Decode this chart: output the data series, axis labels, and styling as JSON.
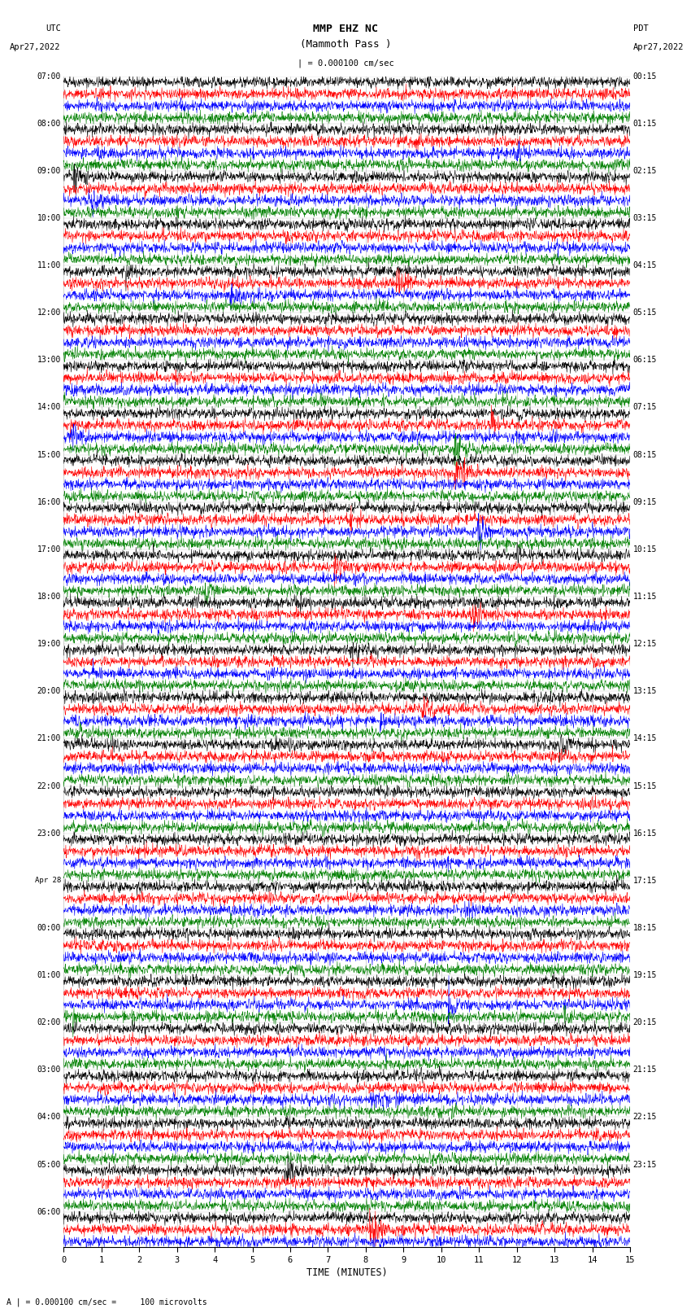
{
  "title_line1": "MMP EHZ NC",
  "title_line2": "(Mammoth Pass )",
  "scale_label": "| = 0.000100 cm/sec",
  "utc_label": "UTC",
  "utc_date": "Apr27,2022",
  "pdt_label": "PDT",
  "pdt_date": "Apr27,2022",
  "xlabel": "TIME (MINUTES)",
  "xmin": 0,
  "xmax": 15,
  "background_color": "#ffffff",
  "trace_colors": [
    "black",
    "red",
    "blue",
    "green"
  ],
  "bottom_note": "A | = 0.000100 cm/sec =     100 microvolts",
  "left_times": [
    "07:00",
    "",
    "",
    "",
    "08:00",
    "",
    "",
    "",
    "09:00",
    "",
    "",
    "",
    "10:00",
    "",
    "",
    "",
    "11:00",
    "",
    "",
    "",
    "12:00",
    "",
    "",
    "",
    "13:00",
    "",
    "",
    "",
    "14:00",
    "",
    "",
    "",
    "15:00",
    "",
    "",
    "",
    "16:00",
    "",
    "",
    "",
    "17:00",
    "",
    "",
    "",
    "18:00",
    "",
    "",
    "",
    "19:00",
    "",
    "",
    "",
    "20:00",
    "",
    "",
    "",
    "21:00",
    "",
    "",
    "",
    "22:00",
    "",
    "",
    "",
    "23:00",
    "",
    "",
    "",
    "Apr 28",
    "",
    "",
    "",
    "00:00",
    "",
    "",
    "",
    "01:00",
    "",
    "",
    "",
    "02:00",
    "",
    "",
    "",
    "03:00",
    "",
    "",
    "",
    "04:00",
    "",
    "",
    "",
    "05:00",
    "",
    "",
    "",
    "06:00",
    "",
    ""
  ],
  "right_times": [
    "00:15",
    "",
    "",
    "",
    "01:15",
    "",
    "",
    "",
    "02:15",
    "",
    "",
    "",
    "03:15",
    "",
    "",
    "",
    "04:15",
    "",
    "",
    "",
    "05:15",
    "",
    "",
    "",
    "06:15",
    "",
    "",
    "",
    "07:15",
    "",
    "",
    "",
    "08:15",
    "",
    "",
    "",
    "09:15",
    "",
    "",
    "",
    "10:15",
    "",
    "",
    "",
    "11:15",
    "",
    "",
    "",
    "12:15",
    "",
    "",
    "",
    "13:15",
    "",
    "",
    "",
    "14:15",
    "",
    "",
    "",
    "15:15",
    "",
    "",
    "",
    "16:15",
    "",
    "",
    "",
    "17:15",
    "",
    "",
    "",
    "18:15",
    "",
    "",
    "",
    "19:15",
    "",
    "",
    "",
    "20:15",
    "",
    "",
    "",
    "21:15",
    "",
    "",
    "",
    "22:15",
    "",
    "",
    "",
    "23:15",
    "",
    "",
    "",
    "",
    "",
    ""
  ],
  "num_rows": 99,
  "noise_seed": 42,
  "fig_width": 8.5,
  "fig_height": 16.13
}
